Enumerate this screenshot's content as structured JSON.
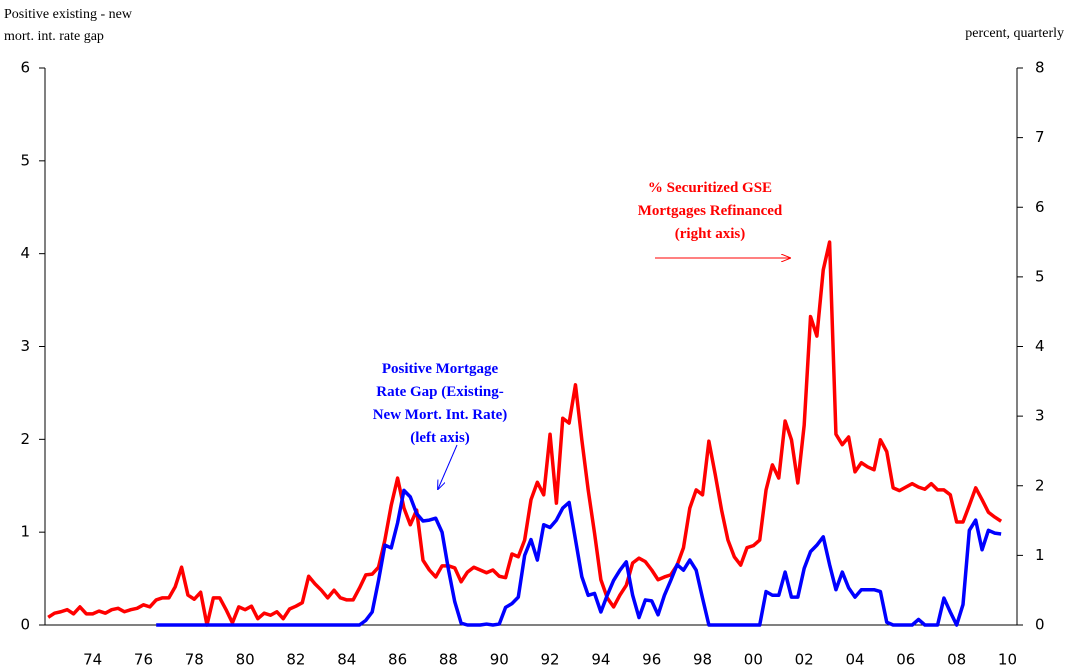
{
  "chart_data": {
    "type": "line",
    "y_title": [
      "Positive existing - new",
      "mort. int. rate gap"
    ],
    "y2_title": "percent, quarterly",
    "categories": [
      null,
      null,
      null,
      null,
      null,
      null,
      null,
      "74",
      null,
      null,
      null,
      null,
      null,
      null,
      null,
      "76",
      null,
      null,
      null,
      null,
      null,
      null,
      null,
      "78",
      null,
      null,
      null,
      null,
      null,
      null,
      null,
      "80",
      null,
      null,
      null,
      null,
      null,
      null,
      null,
      "82",
      null,
      null,
      null,
      null,
      null,
      null,
      null,
      "84",
      null,
      null,
      null,
      null,
      null,
      null,
      null,
      "86",
      null,
      null,
      null,
      null,
      null,
      null,
      null,
      "88",
      null,
      null,
      null,
      null,
      null,
      null,
      null,
      "90",
      null,
      null,
      null,
      null,
      null,
      null,
      null,
      "92",
      null,
      null,
      null,
      null,
      null,
      null,
      null,
      "94",
      null,
      null,
      null,
      null,
      null,
      null,
      null,
      "96",
      null,
      null,
      null,
      null,
      null,
      null,
      null,
      "98",
      null,
      null,
      null,
      null,
      null,
      null,
      null,
      "00",
      null,
      null,
      null,
      null,
      null,
      null,
      null,
      "02",
      null,
      null,
      null,
      null,
      null,
      null,
      null,
      "04",
      null,
      null,
      null,
      null,
      null,
      null,
      null,
      "06",
      null,
      null,
      null,
      null,
      null,
      null,
      null,
      "08",
      null,
      null,
      null,
      null,
      null,
      null,
      null,
      "10",
      null
    ],
    "series": [
      {
        "label": [
          "% Securitized GSE",
          "Mortgages Refinanced",
          "(right axis)"
        ],
        "color": "#ff0000",
        "axis": "y2",
        "values": [
          0.11,
          0.17,
          0.19,
          0.22,
          0.16,
          0.26,
          0.16,
          0.16,
          0.2,
          0.17,
          0.22,
          0.24,
          0.19,
          0.22,
          0.24,
          0.29,
          0.26,
          0.36,
          0.39,
          0.39,
          0.55,
          0.83,
          0.43,
          0.37,
          0.47,
          0,
          0.39,
          0.39,
          0.22,
          0.03,
          0.26,
          0.22,
          0.27,
          0.09,
          0.17,
          0.14,
          0.19,
          0.09,
          0.23,
          0.27,
          0.32,
          0.7,
          0.59,
          0.5,
          0.39,
          0.5,
          0.39,
          0.36,
          0.36,
          0.53,
          0.72,
          0.73,
          0.83,
          1.22,
          1.72,
          2.11,
          1.68,
          1.44,
          1.65,
          0.93,
          0.79,
          0.69,
          0.85,
          0.85,
          0.82,
          0.62,
          0.76,
          0.83,
          0.79,
          0.75,
          0.79,
          0.7,
          0.68,
          1.02,
          0.98,
          1.22,
          1.8,
          2.05,
          1.87,
          2.74,
          1.75,
          2.97,
          2.9,
          3.45,
          2.66,
          1.94,
          1.32,
          0.65,
          0.39,
          0.26,
          0.43,
          0.57,
          0.89,
          0.96,
          0.91,
          0.79,
          0.65,
          0.69,
          0.72,
          0.86,
          1.11,
          1.68,
          1.94,
          1.87,
          2.64,
          2.16,
          1.65,
          1.22,
          0.98,
          0.86,
          1.11,
          1.14,
          1.22,
          1.94,
          2.3,
          2.11,
          2.93,
          2.66,
          2.04,
          2.87,
          4.43,
          4.15,
          5.1,
          5.5,
          2.74,
          2.59,
          2.7,
          2.2,
          2.33,
          2.27,
          2.23,
          2.66,
          2.49,
          1.97,
          1.93,
          1.98,
          2.03,
          1.98,
          1.95,
          2.03,
          1.94,
          1.94,
          1.87,
          1.48,
          1.48,
          1.72,
          1.97,
          1.8,
          1.62,
          1.55,
          1.49,
          null,
          null
        ]
      },
      {
        "label": [
          "Positive Mortgage",
          "Rate Gap (Existing-",
          "New Mort. Int. Rate)",
          "(left axis)"
        ],
        "color": "#0000ff",
        "axis": "y",
        "values": [
          null,
          null,
          null,
          null,
          null,
          null,
          null,
          null,
          null,
          null,
          null,
          null,
          null,
          null,
          null,
          null,
          null,
          0,
          0,
          0,
          0,
          0,
          0,
          0,
          0,
          0,
          0,
          0,
          0,
          0,
          0,
          0,
          0,
          0,
          0,
          0,
          0,
          0,
          0,
          0,
          0,
          0,
          0,
          0,
          0,
          0,
          0,
          0,
          0,
          0,
          0.05,
          0.14,
          0.48,
          0.86,
          0.83,
          1.1,
          1.45,
          1.38,
          1.2,
          1.12,
          1.13,
          1.15,
          1.0,
          0.6,
          0.25,
          0.02,
          0,
          0,
          0,
          0.01,
          0,
          0.01,
          0.19,
          0.23,
          0.3,
          0.75,
          0.92,
          0.7,
          1.08,
          1.05,
          1.13,
          1.26,
          1.32,
          0.92,
          0.52,
          0.32,
          0.34,
          0.14,
          0.32,
          0.48,
          0.59,
          0.68,
          0.32,
          0.08,
          0.27,
          0.26,
          0.11,
          0.32,
          0.48,
          0.65,
          0.59,
          0.7,
          0.59,
          0.29,
          0,
          0,
          0,
          0,
          0,
          0,
          0,
          0,
          0,
          0.36,
          0.32,
          0.32,
          0.57,
          0.3,
          0.3,
          0.61,
          0.79,
          0.86,
          0.95,
          0.65,
          0.38,
          0.57,
          0.4,
          0.3,
          0.38,
          0.38,
          0.38,
          0.36,
          0.03,
          0,
          0,
          0,
          0,
          0.06,
          0,
          0,
          0,
          0.29,
          0.14,
          0,
          0.22,
          1.02,
          1.13,
          0.81,
          1.02,
          0.99,
          0.98,
          null,
          null
        ]
      }
    ],
    "ylim": [
      0,
      6
    ],
    "yticks": [
      0,
      1,
      2,
      3,
      4,
      5,
      6
    ],
    "y2lim": [
      0,
      8
    ],
    "y2ticks": [
      0,
      1,
      2,
      3,
      4,
      5,
      6,
      7,
      8
    ]
  }
}
